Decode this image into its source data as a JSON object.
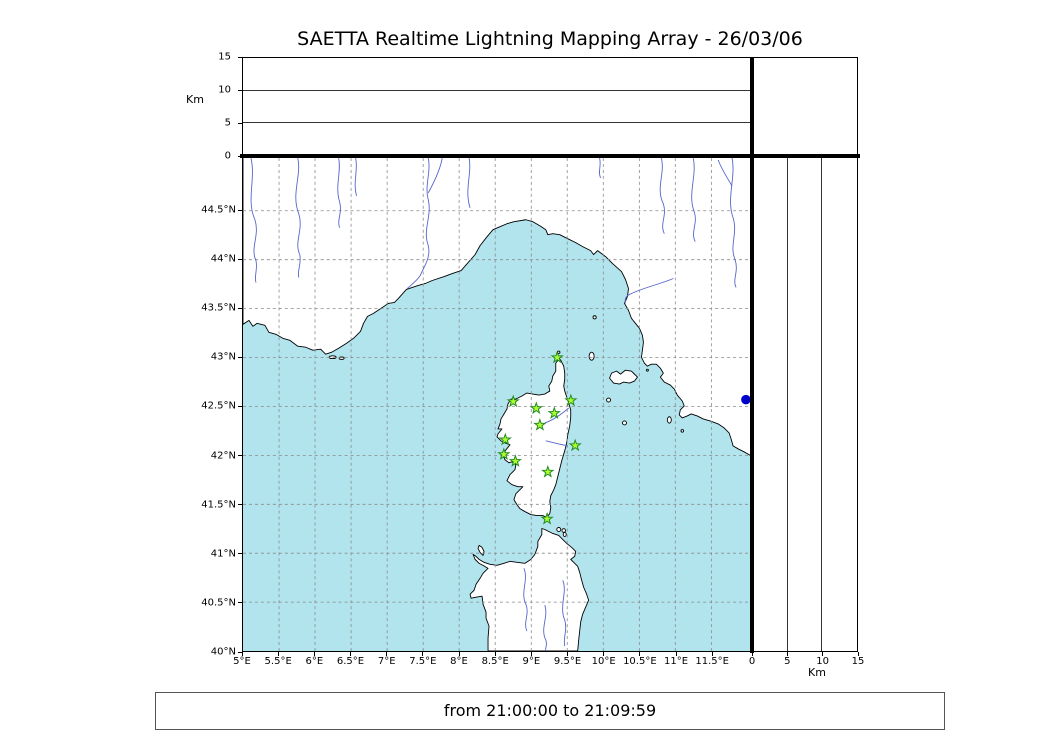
{
  "chart_data": {
    "type": "scatter",
    "title": "SAETTA Realtime Lightning Mapping Array - 26/03/06",
    "time_window": "from 21:00:00 to 21:09:59",
    "map_panel": {
      "name": "plan-view-map",
      "lon_range": [
        5.0,
        12.05
      ],
      "lat_range": [
        40.0,
        45.04
      ],
      "lon_tick_values": [
        5,
        5.5,
        6,
        6.5,
        7,
        7.5,
        8,
        8.5,
        9,
        9.5,
        10,
        10.5,
        11,
        11.5
      ],
      "lon_tick_labels": [
        "5°E",
        "5.5°E",
        "6°E",
        "6.5°E",
        "7°E",
        "7.5°E",
        "8°E",
        "8.5°E",
        "9°E",
        "9.5°E",
        "10°E",
        "10.5°E",
        "11°E",
        "11.5°E"
      ],
      "lat_tick_values": [
        44.5,
        44,
        43.5,
        43,
        42.5,
        42,
        41.5,
        41,
        40.5,
        40
      ],
      "lat_tick_labels": [
        "44.5°N",
        "44°N",
        "43.5°N",
        "43°N",
        "42.5°N",
        "42°N",
        "41.5°N",
        "41°N",
        "40.5°N",
        "40°N"
      ],
      "grid_style": "dashed"
    },
    "altitude_panels": {
      "label": "Km",
      "range": [
        0,
        15
      ],
      "tick_values": [
        0,
        5,
        10,
        15
      ],
      "tick_labels": [
        "0",
        "5",
        "10",
        "15"
      ],
      "gridline_values": [
        5,
        10
      ],
      "lightning_points": []
    },
    "stations": [
      {
        "lon": 9.36,
        "lat": 43.0
      },
      {
        "lon": 8.75,
        "lat": 42.55
      },
      {
        "lon": 9.07,
        "lat": 42.48
      },
      {
        "lon": 9.55,
        "lat": 42.56
      },
      {
        "lon": 9.32,
        "lat": 42.43
      },
      {
        "lon": 9.12,
        "lat": 42.31
      },
      {
        "lon": 8.64,
        "lat": 42.16
      },
      {
        "lon": 9.61,
        "lat": 42.1
      },
      {
        "lon": 8.62,
        "lat": 42.01
      },
      {
        "lon": 8.78,
        "lat": 41.94
      },
      {
        "lon": 9.23,
        "lat": 41.83
      },
      {
        "lon": 9.22,
        "lat": 41.35
      }
    ],
    "event_point": {
      "lon": 11.98,
      "lat": 42.57
    }
  },
  "colors": {
    "sea": "#b2e4ee",
    "land": "#ffffff",
    "coast": "#000000",
    "river": "#5566cc",
    "grid": "#8a8a8a",
    "station_fill": "#adff2f",
    "station_stroke": "#228b22",
    "event": "#0000cd"
  }
}
